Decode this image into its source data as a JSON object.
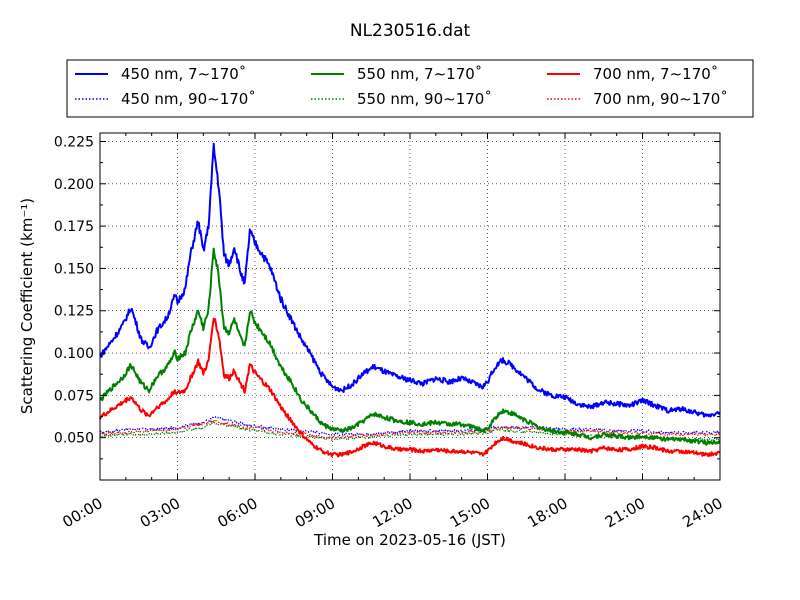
{
  "chart_data": {
    "type": "line",
    "title": "NL230516.dat",
    "xlabel": "Time on 2023-05-16 (JST)",
    "ylabel": "Scattering Coefficient (km⁻¹)",
    "xlim": [
      0,
      24
    ],
    "ylim": [
      0.025,
      0.23
    ],
    "x_ticks": [
      {
        "value": 0,
        "label": "00:00"
      },
      {
        "value": 3,
        "label": "03:00"
      },
      {
        "value": 6,
        "label": "06:00"
      },
      {
        "value": 9,
        "label": "09:00"
      },
      {
        "value": 12,
        "label": "12:00"
      },
      {
        "value": 15,
        "label": "15:00"
      },
      {
        "value": 18,
        "label": "18:00"
      },
      {
        "value": 21,
        "label": "21:00"
      },
      {
        "value": 24,
        "label": "24:00"
      }
    ],
    "y_ticks": [
      {
        "value": 0.05,
        "label": "0.050"
      },
      {
        "value": 0.075,
        "label": "0.075"
      },
      {
        "value": 0.1,
        "label": "0.100"
      },
      {
        "value": 0.125,
        "label": "0.125"
      },
      {
        "value": 0.15,
        "label": "0.150"
      },
      {
        "value": 0.175,
        "label": "0.175"
      },
      {
        "value": 0.2,
        "label": "0.200"
      },
      {
        "value": 0.225,
        "label": "0.225"
      }
    ],
    "grid": true,
    "legend_position": "top",
    "series": [
      {
        "name": "450 nm, 7∼170˚",
        "color": "#0000ff",
        "style": "solid",
        "x": [
          0,
          0.5,
          0.9,
          1.2,
          1.6,
          1.9,
          2.2,
          2.6,
          2.9,
          3.0,
          3.3,
          3.5,
          3.8,
          4.0,
          4.2,
          4.4,
          4.6,
          4.8,
          5.0,
          5.2,
          5.4,
          5.6,
          5.8,
          6.0,
          6.3,
          6.6,
          7.0,
          7.4,
          7.8,
          8.2,
          8.6,
          9.0,
          9.4,
          9.8,
          10.2,
          10.6,
          11.0,
          11.5,
          12.0,
          12.5,
          13.0,
          13.5,
          14.0,
          14.5,
          14.8,
          15.0,
          15.3,
          15.6,
          16.0,
          16.5,
          17.0,
          17.5,
          18.0,
          18.5,
          19.0,
          19.5,
          20.0,
          20.5,
          21.0,
          21.5,
          22.0,
          22.5,
          23.0,
          23.5,
          24.0
        ],
        "y": [
          0.098,
          0.108,
          0.117,
          0.127,
          0.108,
          0.103,
          0.113,
          0.121,
          0.134,
          0.13,
          0.138,
          0.158,
          0.178,
          0.16,
          0.175,
          0.222,
          0.198,
          0.158,
          0.152,
          0.163,
          0.15,
          0.14,
          0.172,
          0.165,
          0.158,
          0.15,
          0.132,
          0.12,
          0.108,
          0.098,
          0.087,
          0.08,
          0.078,
          0.082,
          0.088,
          0.092,
          0.089,
          0.086,
          0.084,
          0.082,
          0.085,
          0.083,
          0.085,
          0.082,
          0.08,
          0.083,
          0.092,
          0.096,
          0.092,
          0.085,
          0.078,
          0.075,
          0.074,
          0.07,
          0.068,
          0.071,
          0.07,
          0.069,
          0.072,
          0.069,
          0.066,
          0.067,
          0.065,
          0.063,
          0.065
        ]
      },
      {
        "name": "550 nm, 7∼170˚",
        "color": "#008000",
        "style": "solid",
        "x": [
          0,
          0.5,
          0.9,
          1.2,
          1.6,
          1.9,
          2.2,
          2.6,
          2.9,
          3.0,
          3.3,
          3.5,
          3.8,
          4.0,
          4.2,
          4.4,
          4.6,
          4.8,
          5.0,
          5.2,
          5.4,
          5.6,
          5.8,
          6.0,
          6.3,
          6.6,
          7.0,
          7.4,
          7.8,
          8.2,
          8.6,
          9.0,
          9.4,
          9.8,
          10.2,
          10.6,
          11.0,
          11.5,
          12.0,
          12.5,
          13.0,
          13.5,
          14.0,
          14.5,
          14.8,
          15.0,
          15.3,
          15.6,
          16.0,
          16.5,
          17.0,
          17.5,
          18.0,
          18.5,
          19.0,
          19.5,
          20.0,
          20.5,
          21.0,
          21.5,
          22.0,
          22.5,
          23.0,
          23.5,
          24.0
        ],
        "y": [
          0.072,
          0.08,
          0.086,
          0.093,
          0.082,
          0.078,
          0.086,
          0.092,
          0.1,
          0.097,
          0.1,
          0.112,
          0.125,
          0.115,
          0.125,
          0.162,
          0.145,
          0.115,
          0.112,
          0.12,
          0.11,
          0.103,
          0.125,
          0.118,
          0.112,
          0.105,
          0.092,
          0.083,
          0.072,
          0.065,
          0.058,
          0.055,
          0.054,
          0.056,
          0.06,
          0.064,
          0.062,
          0.06,
          0.059,
          0.058,
          0.059,
          0.058,
          0.058,
          0.056,
          0.054,
          0.055,
          0.062,
          0.066,
          0.064,
          0.06,
          0.056,
          0.054,
          0.053,
          0.052,
          0.05,
          0.052,
          0.051,
          0.05,
          0.051,
          0.05,
          0.049,
          0.049,
          0.048,
          0.047,
          0.048
        ]
      },
      {
        "name": "700 nm, 7∼170˚",
        "color": "#ff0000",
        "style": "solid",
        "x": [
          0,
          0.5,
          0.9,
          1.2,
          1.6,
          1.9,
          2.2,
          2.6,
          2.9,
          3.0,
          3.3,
          3.5,
          3.8,
          4.0,
          4.2,
          4.4,
          4.6,
          4.8,
          5.0,
          5.2,
          5.4,
          5.6,
          5.8,
          6.0,
          6.3,
          6.6,
          7.0,
          7.4,
          7.8,
          8.2,
          8.6,
          9.0,
          9.4,
          9.8,
          10.2,
          10.6,
          11.0,
          11.5,
          12.0,
          12.5,
          13.0,
          13.5,
          14.0,
          14.5,
          14.8,
          15.0,
          15.3,
          15.6,
          16.0,
          16.5,
          17.0,
          17.5,
          18.0,
          18.5,
          19.0,
          19.5,
          20.0,
          20.5,
          21.0,
          21.5,
          22.0,
          22.5,
          23.0,
          23.5,
          24.0
        ],
        "y": [
          0.062,
          0.067,
          0.071,
          0.074,
          0.066,
          0.063,
          0.068,
          0.072,
          0.078,
          0.076,
          0.078,
          0.085,
          0.095,
          0.088,
          0.095,
          0.122,
          0.11,
          0.087,
          0.085,
          0.09,
          0.083,
          0.078,
          0.093,
          0.088,
          0.083,
          0.078,
          0.068,
          0.06,
          0.052,
          0.046,
          0.042,
          0.04,
          0.04,
          0.042,
          0.045,
          0.047,
          0.045,
          0.043,
          0.043,
          0.042,
          0.043,
          0.042,
          0.042,
          0.041,
          0.04,
          0.042,
          0.047,
          0.05,
          0.048,
          0.046,
          0.044,
          0.043,
          0.043,
          0.043,
          0.042,
          0.044,
          0.043,
          0.043,
          0.045,
          0.044,
          0.042,
          0.042,
          0.041,
          0.04,
          0.041
        ]
      },
      {
        "name": "450 nm, 90∼170˚",
        "color": "#0000ff",
        "style": "dotted",
        "x": [
          0,
          1,
          2,
          3,
          3.5,
          4.0,
          4.4,
          5.0,
          5.6,
          6.0,
          7.0,
          8.0,
          9.0,
          10.0,
          11.0,
          12.0,
          13.0,
          14.0,
          15.0,
          15.5,
          16.0,
          17.0,
          18.0,
          19.0,
          20.0,
          21.0,
          22.0,
          23.0,
          24.0
        ],
        "y": [
          0.053,
          0.055,
          0.055,
          0.056,
          0.058,
          0.059,
          0.062,
          0.06,
          0.058,
          0.057,
          0.055,
          0.054,
          0.052,
          0.052,
          0.053,
          0.054,
          0.054,
          0.054,
          0.055,
          0.057,
          0.056,
          0.056,
          0.055,
          0.055,
          0.054,
          0.054,
          0.053,
          0.053,
          0.053
        ]
      },
      {
        "name": "550 nm, 90∼170˚",
        "color": "#008000",
        "style": "dotted",
        "x": [
          0,
          1,
          2,
          3,
          3.5,
          4.0,
          4.4,
          5.0,
          5.6,
          6.0,
          7.0,
          8.0,
          9.0,
          10.0,
          11.0,
          12.0,
          13.0,
          14.0,
          15.0,
          15.5,
          16.0,
          17.0,
          18.0,
          19.0,
          20.0,
          21.0,
          22.0,
          23.0,
          24.0
        ],
        "y": [
          0.051,
          0.052,
          0.052,
          0.053,
          0.055,
          0.056,
          0.059,
          0.057,
          0.055,
          0.054,
          0.052,
          0.051,
          0.049,
          0.05,
          0.051,
          0.052,
          0.052,
          0.052,
          0.053,
          0.055,
          0.054,
          0.053,
          0.052,
          0.051,
          0.05,
          0.05,
          0.049,
          0.049,
          0.049
        ]
      },
      {
        "name": "700 nm, 90∼170˚",
        "color": "#ff0000",
        "style": "dotted",
        "x": [
          0,
          1,
          2,
          3,
          3.5,
          4.0,
          4.4,
          5.0,
          5.6,
          6.0,
          7.0,
          8.0,
          9.0,
          10.0,
          11.0,
          12.0,
          13.0,
          14.0,
          15.0,
          15.5,
          16.0,
          17.0,
          18.0,
          19.0,
          20.0,
          21.0,
          22.0,
          23.0,
          24.0
        ],
        "y": [
          0.052,
          0.053,
          0.054,
          0.055,
          0.057,
          0.058,
          0.06,
          0.058,
          0.056,
          0.056,
          0.053,
          0.052,
          0.05,
          0.051,
          0.052,
          0.053,
          0.053,
          0.053,
          0.054,
          0.056,
          0.056,
          0.055,
          0.054,
          0.054,
          0.053,
          0.053,
          0.052,
          0.052,
          0.052
        ]
      }
    ]
  }
}
